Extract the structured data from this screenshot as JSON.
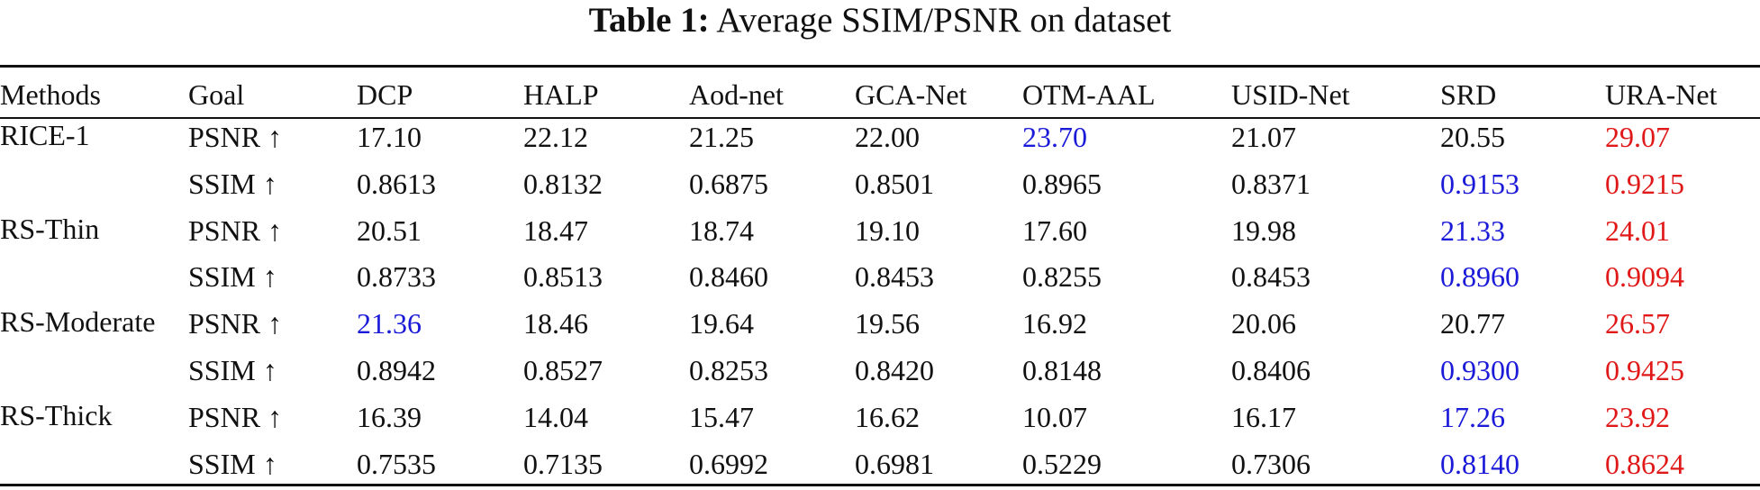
{
  "caption": {
    "label": "Table 1:",
    "text": "Average SSIM/PSNR on dataset"
  },
  "table": {
    "headers": [
      "Methods",
      "Goal",
      "DCP",
      "HALP",
      "Aod-net",
      "GCA-Net",
      "OTM-AAL",
      "USID-Net",
      "SRD",
      "URA-Net"
    ],
    "datasets": [
      {
        "name": "RICE-1",
        "rows": [
          {
            "goal": "PSNR ↑",
            "values": [
              "17.10",
              "22.12",
              "21.25",
              "22.00",
              "23.70",
              "21.07",
              "20.55",
              "29.07"
            ]
          },
          {
            "goal": "SSIM ↑",
            "values": [
              "0.8613",
              "0.8132",
              "0.6875",
              "0.8501",
              "0.8965",
              "0.8371",
              "0.9153",
              "0.9215"
            ]
          }
        ]
      },
      {
        "name": "RS-Thin",
        "rows": [
          {
            "goal": "PSNR ↑",
            "values": [
              "20.51",
              "18.47",
              "18.74",
              "19.10",
              "17.60",
              "19.98",
              "21.33",
              "24.01"
            ]
          },
          {
            "goal": "SSIM ↑",
            "values": [
              "0.8733",
              "0.8513",
              "0.8460",
              "0.8453",
              "0.8255",
              "0.8453",
              "0.8960",
              "0.9094"
            ]
          }
        ]
      },
      {
        "name": "RS-Moderate",
        "rows": [
          {
            "goal": "PSNR ↑",
            "values": [
              "21.36",
              "18.46",
              "19.64",
              "19.56",
              "16.92",
              "20.06",
              "20.77",
              "26.57"
            ]
          },
          {
            "goal": "SSIM ↑",
            "values": [
              "0.8942",
              "0.8527",
              "0.8253",
              "0.8420",
              "0.8148",
              "0.8406",
              "0.9300",
              "0.9425"
            ]
          }
        ]
      },
      {
        "name": "RS-Thick",
        "rows": [
          {
            "goal": "PSNR ↑",
            "values": [
              "16.39",
              "14.04",
              "15.47",
              "16.62",
              "10.07",
              "16.17",
              "17.26",
              "23.92"
            ]
          },
          {
            "goal": "SSIM ↑",
            "values": [
              "0.7535",
              "0.7135",
              "0.6992",
              "0.6981",
              "0.5229",
              "0.7306",
              "0.8140",
              "0.8624"
            ]
          }
        ]
      }
    ],
    "highlight_colors": {
      "best": "#e01818",
      "second": "#1a1ad8"
    }
  }
}
